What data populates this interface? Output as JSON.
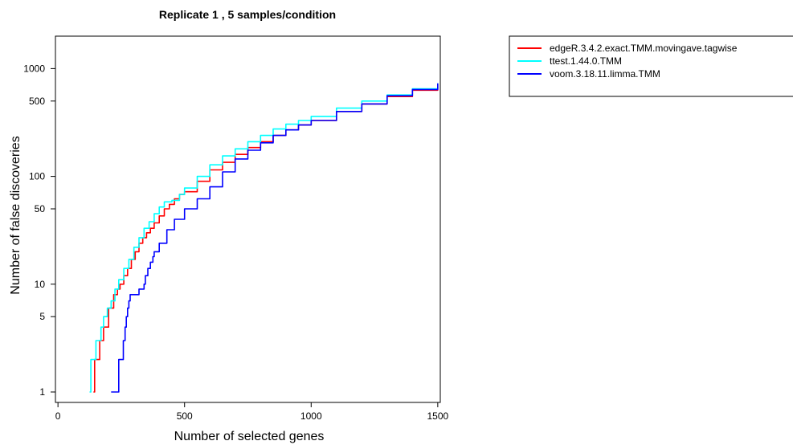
{
  "chart_data": {
    "type": "line",
    "title": "Replicate 1 ,  5 samples/condition",
    "xlabel": "Number of selected genes",
    "ylabel": "Number of false discoveries",
    "xlim": [
      -10,
      1510
    ],
    "ylim": [
      0.8,
      2000
    ],
    "log_y": true,
    "grid": false,
    "legend_position": "top-right",
    "x_ticks": [
      0,
      500,
      1000,
      1500
    ],
    "y_ticks": [
      1,
      5,
      10,
      50,
      100,
      500,
      1000
    ],
    "series": [
      {
        "name": "edgeR.3.4.2.exact.TMM.movingave.tagwise",
        "color": "#ff0000",
        "points": [
          [
            140,
            1
          ],
          [
            145,
            1
          ],
          [
            145,
            2
          ],
          [
            165,
            2
          ],
          [
            165,
            3
          ],
          [
            175,
            3
          ],
          [
            180,
            4
          ],
          [
            195,
            4
          ],
          [
            200,
            6
          ],
          [
            215,
            6
          ],
          [
            220,
            8
          ],
          [
            235,
            9
          ],
          [
            245,
            10
          ],
          [
            260,
            12
          ],
          [
            275,
            14
          ],
          [
            290,
            17
          ],
          [
            305,
            20
          ],
          [
            320,
            24
          ],
          [
            335,
            27
          ],
          [
            350,
            30
          ],
          [
            365,
            33
          ],
          [
            380,
            37
          ],
          [
            400,
            43
          ],
          [
            420,
            50
          ],
          [
            440,
            55
          ],
          [
            460,
            62
          ],
          [
            480,
            68
          ],
          [
            500,
            72
          ],
          [
            550,
            90
          ],
          [
            600,
            115
          ],
          [
            650,
            135
          ],
          [
            700,
            160
          ],
          [
            750,
            185
          ],
          [
            800,
            210
          ],
          [
            850,
            240
          ],
          [
            900,
            270
          ],
          [
            950,
            300
          ],
          [
            1000,
            330
          ],
          [
            1100,
            400
          ],
          [
            1200,
            470
          ],
          [
            1300,
            550
          ],
          [
            1400,
            630
          ],
          [
            1500,
            720
          ]
        ]
      },
      {
        "name": "ttest.1.44.0.TMM",
        "color": "#00ffff",
        "points": [
          [
            125,
            1
          ],
          [
            130,
            1
          ],
          [
            130,
            2
          ],
          [
            150,
            2
          ],
          [
            150,
            3
          ],
          [
            170,
            3
          ],
          [
            170,
            4
          ],
          [
            180,
            5
          ],
          [
            195,
            6
          ],
          [
            210,
            7
          ],
          [
            225,
            9
          ],
          [
            240,
            11
          ],
          [
            260,
            14
          ],
          [
            280,
            17
          ],
          [
            300,
            22
          ],
          [
            320,
            27
          ],
          [
            340,
            33
          ],
          [
            360,
            38
          ],
          [
            380,
            45
          ],
          [
            400,
            52
          ],
          [
            420,
            58
          ],
          [
            450,
            60
          ],
          [
            480,
            68
          ],
          [
            500,
            78
          ],
          [
            550,
            100
          ],
          [
            600,
            128
          ],
          [
            650,
            155
          ],
          [
            700,
            180
          ],
          [
            750,
            210
          ],
          [
            800,
            240
          ],
          [
            850,
            275
          ],
          [
            900,
            305
          ],
          [
            950,
            330
          ],
          [
            1000,
            360
          ],
          [
            1100,
            430
          ],
          [
            1200,
            500
          ],
          [
            1300,
            570
          ],
          [
            1400,
            650
          ],
          [
            1500,
            730
          ]
        ]
      },
      {
        "name": "voom.3.18.11.limma.TMM",
        "color": "#0000ff",
        "points": [
          [
            210,
            1
          ],
          [
            235,
            1
          ],
          [
            240,
            2
          ],
          [
            255,
            2
          ],
          [
            258,
            3
          ],
          [
            265,
            4
          ],
          [
            270,
            5
          ],
          [
            275,
            6
          ],
          [
            280,
            7
          ],
          [
            285,
            8
          ],
          [
            310,
            8
          ],
          [
            320,
            9
          ],
          [
            330,
            9
          ],
          [
            340,
            10
          ],
          [
            345,
            12
          ],
          [
            355,
            14
          ],
          [
            365,
            16
          ],
          [
            375,
            18
          ],
          [
            380,
            20
          ],
          [
            400,
            24
          ],
          [
            430,
            32
          ],
          [
            460,
            40
          ],
          [
            500,
            50
          ],
          [
            550,
            62
          ],
          [
            600,
            80
          ],
          [
            650,
            110
          ],
          [
            700,
            145
          ],
          [
            750,
            175
          ],
          [
            800,
            205
          ],
          [
            850,
            240
          ],
          [
            900,
            270
          ],
          [
            950,
            300
          ],
          [
            1000,
            330
          ],
          [
            1100,
            400
          ],
          [
            1200,
            470
          ],
          [
            1300,
            560
          ],
          [
            1400,
            640
          ],
          [
            1500,
            730
          ]
        ]
      }
    ]
  }
}
